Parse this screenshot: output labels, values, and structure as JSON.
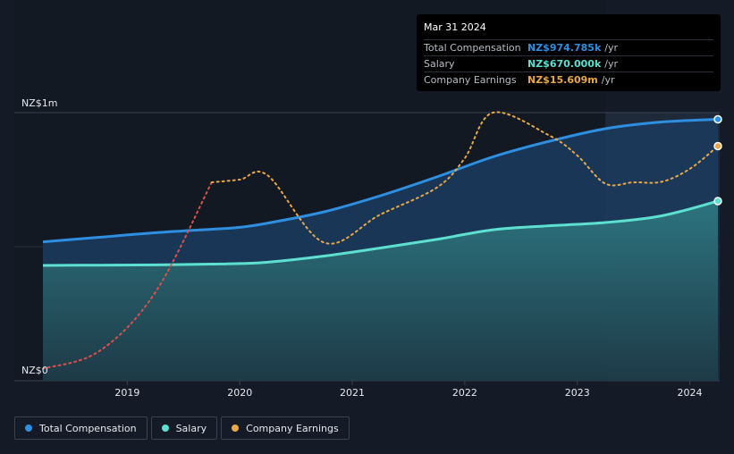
{
  "chart_data": {
    "type": "area",
    "title": "",
    "y_axis": {
      "min": 0,
      "max": 1000,
      "unit": "NZ$k",
      "tick_labels": [
        "NZ$1m",
        "NZ$0"
      ]
    },
    "x_axis": {
      "min": 2018.2,
      "max": 2024.25,
      "tick_labels": [
        "2019",
        "2020",
        "2021",
        "2022",
        "2023",
        "2024"
      ],
      "tick_values": [
        2019,
        2020,
        2021,
        2022,
        2023,
        2024
      ]
    },
    "forecast_start": 2023.25,
    "series": [
      {
        "name": "Total Compensation",
        "color": "#2e8fe0",
        "points": [
          [
            2018.25,
            518
          ],
          [
            2018.75,
            535
          ],
          [
            2019.25,
            552
          ],
          [
            2019.75,
            565
          ],
          [
            2020.0,
            572
          ],
          [
            2020.25,
            588
          ],
          [
            2020.75,
            630
          ],
          [
            2021.25,
            690
          ],
          [
            2021.75,
            760
          ],
          [
            2022.25,
            835
          ],
          [
            2022.75,
            893
          ],
          [
            2023.25,
            940
          ],
          [
            2023.75,
            965
          ],
          [
            2024.25,
            975
          ]
        ]
      },
      {
        "name": "Salary",
        "color": "#5de0d0",
        "points": [
          [
            2018.25,
            430
          ],
          [
            2018.75,
            431
          ],
          [
            2019.25,
            432
          ],
          [
            2019.75,
            435
          ],
          [
            2020.0,
            437
          ],
          [
            2020.25,
            442
          ],
          [
            2020.75,
            465
          ],
          [
            2021.25,
            495
          ],
          [
            2021.75,
            527
          ],
          [
            2022.25,
            563
          ],
          [
            2022.75,
            578
          ],
          [
            2023.25,
            590
          ],
          [
            2023.75,
            615
          ],
          [
            2024.25,
            670
          ]
        ]
      },
      {
        "name": "Company Earnings",
        "color": "#e8a849",
        "points": [
          [
            2018.25,
            45
          ],
          [
            2018.75,
            110
          ],
          [
            2019.25,
            330
          ],
          [
            2019.75,
            740
          ],
          [
            2020.0,
            750
          ],
          [
            2020.25,
            765
          ],
          [
            2020.75,
            515
          ],
          [
            2021.25,
            620
          ],
          [
            2021.75,
            720
          ],
          [
            2022.0,
            830
          ],
          [
            2022.25,
            1000
          ],
          [
            2022.75,
            915
          ],
          [
            2023.0,
            840
          ],
          [
            2023.25,
            735
          ],
          [
            2023.5,
            740
          ],
          [
            2023.75,
            742
          ],
          [
            2024.0,
            790
          ],
          [
            2024.25,
            875
          ]
        ]
      }
    ]
  },
  "tooltip": {
    "date": "Mar 31 2024",
    "rows": [
      {
        "name": "Total Compensation",
        "value": "NZ$974.785k",
        "unit": "/yr",
        "color": "#2e8fe0"
      },
      {
        "name": "Salary",
        "value": "NZ$670.000k",
        "unit": "/yr",
        "color": "#5de0d0"
      },
      {
        "name": "Company Earnings",
        "value": "NZ$15.609m",
        "unit": "/yr",
        "color": "#e8a849"
      }
    ]
  },
  "legend": [
    {
      "label": "Total Compensation",
      "color": "#2e8fe0"
    },
    {
      "label": "Salary",
      "color": "#5de0d0"
    },
    {
      "label": "Company Earnings",
      "color": "#e8a849"
    }
  ]
}
